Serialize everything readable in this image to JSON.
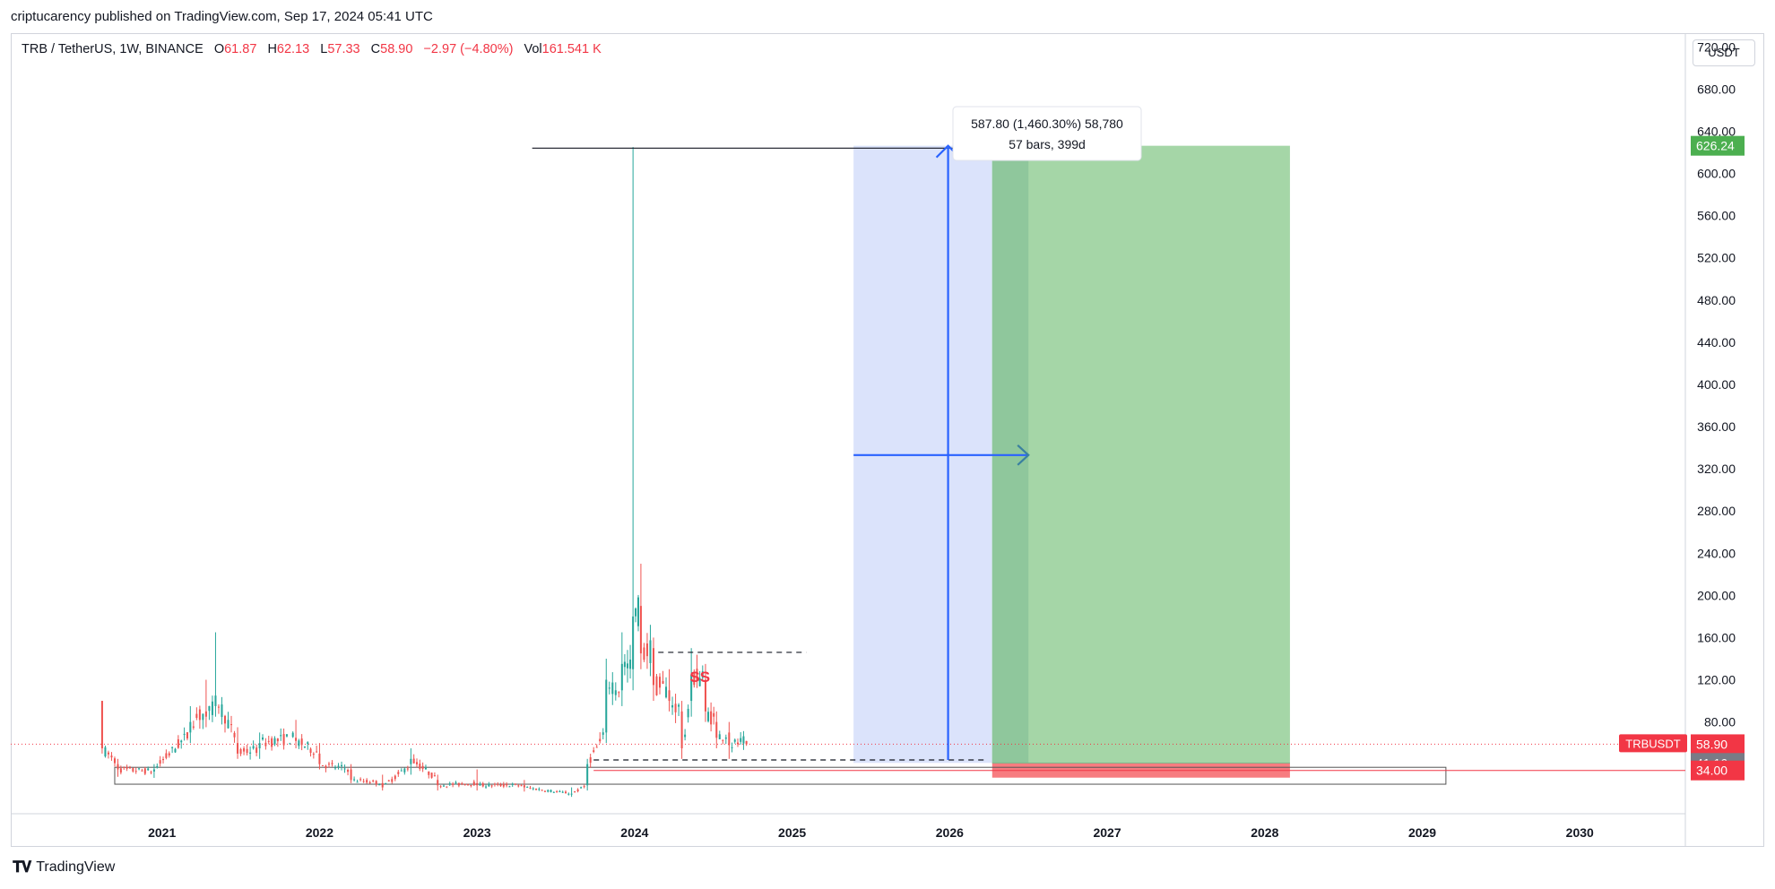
{
  "header": {
    "published": "criptucarency published on TradingView.com, Sep 17, 2024 05:41 UTC"
  },
  "legend": {
    "symbol": "TRB / TetherUS, 1W, BINANCE",
    "open_label": "O",
    "open": "61.87",
    "high_label": "H",
    "high": "62.13",
    "low_label": "L",
    "low": "57.33",
    "close_label": "C",
    "close": "58.90",
    "change": "−2.97 (−4.80%)",
    "vol_label": "Vol",
    "vol": "161.541 K"
  },
  "price_scale": {
    "unit_button": "USDT"
  },
  "measure_tooltip": {
    "line1": "587.80 (1,460.30%) 58,780",
    "line2": "57 bars, 399d"
  },
  "annotations": {
    "ss_label": "SS"
  },
  "footer": {
    "brand": "TradingView"
  },
  "colors": {
    "up": "#26a69a",
    "down": "#ef5350",
    "target_zone": "#a5d6a7",
    "stop_zone": "#f77c80",
    "measure_zone": "#dbe3fb",
    "measure_arrow": "#2962ff",
    "price_line": "#f23645"
  },
  "chart_data": {
    "type": "candlestick",
    "timeframe": "1W",
    "y_axis": {
      "ticks": [
        80,
        120,
        160,
        200,
        240,
        280,
        320,
        360,
        400,
        440,
        480,
        520,
        560,
        600,
        640,
        680,
        720
      ],
      "range": [
        -7,
        733
      ]
    },
    "x_axis": {
      "ticks": [
        "2021",
        "2022",
        "2023",
        "2024",
        "2025",
        "2026",
        "2027",
        "2028",
        "2029",
        "2030"
      ],
      "range": [
        2020.04,
        2030.67
      ]
    },
    "price_labels": [
      {
        "text": "626.24",
        "value": 626.24,
        "color": "#4caf50"
      },
      {
        "text": "58.90",
        "value": 58.9,
        "color": "#f23645",
        "sub": "5d 19h",
        "name": "TRBUSDT"
      },
      {
        "text": "41.16",
        "value": 41.16,
        "color": "#787b86"
      },
      {
        "text": "34.00",
        "value": 34.0,
        "color": "#f23645"
      }
    ],
    "anchors": [
      {
        "t": 2020.62,
        "o": 100,
        "h": 100,
        "l": 50,
        "c": 55
      },
      {
        "t": 2020.72,
        "o": 40,
        "h": 45,
        "l": 28,
        "c": 35
      },
      {
        "t": 2020.95,
        "o": 33,
        "h": 40,
        "l": 27,
        "c": 35
      },
      {
        "t": 2021.18,
        "o": 70,
        "h": 95,
        "l": 60,
        "c": 80
      },
      {
        "t": 2021.28,
        "o": 90,
        "h": 120,
        "l": 75,
        "c": 85
      },
      {
        "t": 2021.34,
        "o": 95,
        "h": 165,
        "l": 85,
        "c": 105
      },
      {
        "t": 2021.48,
        "o": 60,
        "h": 75,
        "l": 45,
        "c": 50
      },
      {
        "t": 2021.62,
        "o": 55,
        "h": 70,
        "l": 45,
        "c": 60
      },
      {
        "t": 2021.85,
        "o": 65,
        "h": 82,
        "l": 55,
        "c": 62
      },
      {
        "t": 2022.0,
        "o": 50,
        "h": 60,
        "l": 35,
        "c": 40
      },
      {
        "t": 2022.2,
        "o": 35,
        "h": 40,
        "l": 22,
        "c": 25
      },
      {
        "t": 2022.4,
        "o": 22,
        "h": 30,
        "l": 15,
        "c": 18
      },
      {
        "t": 2022.58,
        "o": 40,
        "h": 55,
        "l": 30,
        "c": 45
      },
      {
        "t": 2022.75,
        "o": 25,
        "h": 30,
        "l": 15,
        "c": 20
      },
      {
        "t": 2023.0,
        "o": 22,
        "h": 35,
        "l": 15,
        "c": 20
      },
      {
        "t": 2023.3,
        "o": 20,
        "h": 25,
        "l": 14,
        "c": 18
      },
      {
        "t": 2023.6,
        "o": 12,
        "h": 18,
        "l": 9,
        "c": 12
      },
      {
        "t": 2023.7,
        "o": 20,
        "h": 45,
        "l": 15,
        "c": 40
      },
      {
        "t": 2023.82,
        "o": 70,
        "h": 140,
        "l": 60,
        "c": 120
      },
      {
        "t": 2023.92,
        "o": 110,
        "h": 165,
        "l": 95,
        "c": 135
      },
      {
        "t": 2023.99,
        "o": 130,
        "h": 625,
        "l": 110,
        "c": 180
      },
      {
        "t": 2024.04,
        "o": 190,
        "h": 230,
        "l": 130,
        "c": 145
      },
      {
        "t": 2024.12,
        "o": 150,
        "h": 160,
        "l": 100,
        "c": 115
      },
      {
        "t": 2024.22,
        "o": 110,
        "h": 130,
        "l": 90,
        "c": 100
      },
      {
        "t": 2024.3,
        "o": 90,
        "h": 100,
        "l": 45,
        "c": 55
      },
      {
        "t": 2024.36,
        "o": 100,
        "h": 150,
        "l": 85,
        "c": 125
      },
      {
        "t": 2024.45,
        "o": 120,
        "h": 135,
        "l": 80,
        "c": 90
      },
      {
        "t": 2024.52,
        "o": 80,
        "h": 90,
        "l": 55,
        "c": 65
      },
      {
        "t": 2024.6,
        "o": 70,
        "h": 80,
        "l": 45,
        "c": 58
      },
      {
        "t": 2024.71,
        "o": 61.87,
        "h": 62.13,
        "l": 57.33,
        "c": 58.9
      }
    ]
  }
}
